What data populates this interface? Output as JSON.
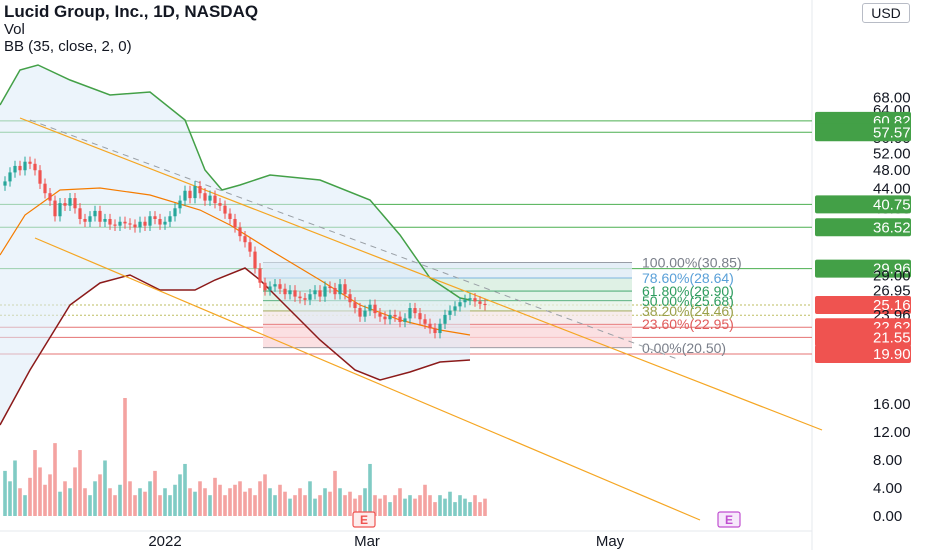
{
  "header": {
    "title": "Lucid Group, Inc., 1D, NASDAQ",
    "volume_label": "Vol",
    "indicator": "BB (35, close, 2, 0)",
    "currency": "USD"
  },
  "colors": {
    "up": "#26a69a",
    "down": "#ef5350",
    "vol_up": "#80cbc4",
    "vol_down": "#f4a3a1",
    "bb_upper": "#43a047",
    "bb_basis": "#f57c00",
    "bb_lower": "#8b1a1a",
    "bb_fill": "#dcebf7",
    "channel": "#f5a623",
    "level_green": "#4caf50",
    "level_red": "#e57373",
    "fib_text": "#5aa0d8"
  },
  "chart_data": {
    "type": "candlestick",
    "title": "Lucid Group, Inc., 1D, NASDAQ",
    "y_axis_ticks": [
      "68.00",
      "64.00",
      "60.00",
      "56.00",
      "52.00",
      "48.00",
      "44.00",
      "40.00",
      "16.00",
      "12.00",
      "8.00",
      "4.00",
      "0.00"
    ],
    "y_scale": "log",
    "x_axis_ticks": [
      "2022",
      "Mar",
      "May"
    ],
    "price_labels": [
      {
        "value": "60.82",
        "color": "green"
      },
      {
        "value": "57.57",
        "color": "green"
      },
      {
        "value": "40.75",
        "color": "green"
      },
      {
        "value": "36.52",
        "color": "green"
      },
      {
        "value": "29.96",
        "color": "green"
      },
      {
        "value": "29.00",
        "color": "none"
      },
      {
        "value": "26.95",
        "color": "none"
      },
      {
        "value": "25.64",
        "color": "none"
      },
      {
        "value": "25.16",
        "color": "red"
      },
      {
        "value": "23.96",
        "color": "none"
      },
      {
        "value": "22.62",
        "color": "red"
      },
      {
        "value": "21.55",
        "color": "red"
      },
      {
        "value": "19.90",
        "color": "red"
      }
    ],
    "fib_levels": [
      {
        "label": "100.00%(30.85)",
        "price": 30.85
      },
      {
        "label": "78.60%(28.64)",
        "price": 28.64
      },
      {
        "label": "61.80%(26.90)",
        "price": 26.9
      },
      {
        "label": "50.00%(25.68)",
        "price": 25.68
      },
      {
        "label": "38.20%(24.46)",
        "price": 24.46
      },
      {
        "label": "23.60%(22.95)",
        "price": 22.95
      },
      {
        "label": "0.00%(20.50)",
        "price": 20.5
      }
    ],
    "earnings_markers": [
      "E",
      "E"
    ],
    "close_series": [
      45.5,
      47.5,
      49.0,
      48.0,
      50.0,
      49.5,
      48.0,
      45.0,
      43.0,
      41.5,
      38.5,
      41.0,
      40.5,
      42.0,
      40.0,
      38.0,
      37.5,
      38.5,
      39.5,
      37.5,
      38.0,
      37.0,
      36.8,
      37.5,
      37.2,
      37.0,
      36.5,
      37.5,
      36.8,
      38.5,
      38.0,
      37.0,
      37.5,
      38.5,
      40.0,
      41.5,
      43.5,
      42.0,
      44.5,
      43.0,
      41.5,
      42.5,
      41.0,
      40.5,
      39.0,
      38.0,
      36.5,
      35.0,
      34.0,
      32.5,
      30.0,
      28.0,
      27.0,
      27.5,
      27.8,
      27.2,
      26.5,
      27.0,
      26.2,
      26.0,
      25.8,
      26.5,
      27.0,
      26.2,
      27.5,
      27.3,
      26.5,
      27.8,
      26.5,
      25.5,
      24.8,
      23.8,
      24.5,
      25.2,
      24.2,
      23.8,
      23.5,
      24.0,
      23.8,
      23.2,
      23.6,
      24.8,
      24.2,
      23.5,
      23.0,
      22.5,
      22.0,
      23.0,
      24.0,
      24.5,
      25.0,
      25.5,
      25.8,
      26.0,
      25.6,
      25.3,
      25.16
    ],
    "volume_series": [
      6.5,
      5.0,
      8.0,
      4.0,
      3.0,
      5.5,
      9.5,
      7.0,
      4.5,
      6.0,
      10.5,
      3.5,
      5.0,
      4.0,
      7.0,
      9.5,
      4.0,
      3.0,
      5.0,
      6.0,
      8.0,
      4.0,
      3.0,
      4.5,
      17.0,
      5.0,
      3.0,
      4.0,
      3.5,
      5.0,
      6.5,
      3.0,
      4.0,
      3.0,
      4.5,
      6.0,
      7.5,
      4.0,
      3.5,
      5.0,
      4.0,
      3.0,
      5.5,
      4.5,
      3.0,
      4.0,
      4.5,
      5.0,
      3.5,
      4.0,
      3.0,
      5.0,
      6.0,
      4.0,
      3.0,
      4.5,
      3.5,
      2.5,
      3.0,
      4.0,
      3.0,
      5.0,
      2.5,
      3.0,
      4.0,
      3.5,
      6.5,
      4.0,
      3.0,
      3.5,
      2.5,
      3.0,
      4.0,
      7.5,
      3.0,
      2.5,
      3.0,
      2.0,
      3.0,
      4.0,
      2.5,
      3.0,
      2.5,
      3.0,
      4.5,
      3.0,
      2.0,
      3.0,
      2.5,
      3.5,
      2.0,
      3.0,
      2.5,
      2.0,
      3.0,
      2.0,
      2.5
    ]
  }
}
